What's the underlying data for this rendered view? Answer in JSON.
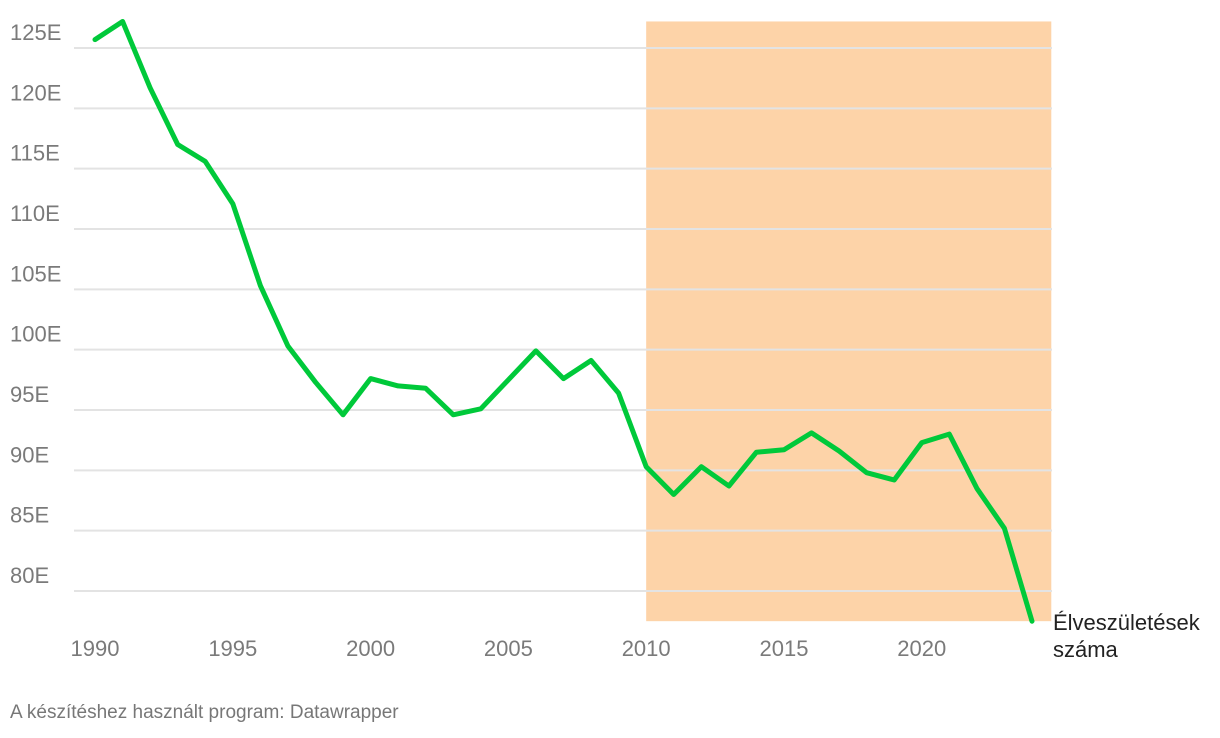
{
  "chart_data": {
    "type": "line",
    "title": "",
    "xlabel": "",
    "ylabel": "",
    "x": [
      1990,
      1991,
      1992,
      1993,
      1994,
      1995,
      1996,
      1997,
      1998,
      1999,
      2000,
      2001,
      2002,
      2003,
      2004,
      2005,
      2006,
      2007,
      2008,
      2009,
      2010,
      2011,
      2012,
      2013,
      2014,
      2015,
      2016,
      2017,
      2018,
      2019,
      2020,
      2021,
      2022,
      2023,
      2024
    ],
    "series": [
      {
        "name": "Élveszületések száma",
        "color": "#00c93a",
        "values": [
          125.7,
          127.2,
          121.7,
          117.0,
          115.6,
          112.1,
          105.3,
          100.3,
          97.3,
          94.6,
          97.6,
          97.0,
          96.8,
          94.6,
          95.1,
          97.5,
          99.9,
          97.6,
          99.1,
          96.4,
          90.3,
          88.0,
          90.3,
          88.7,
          91.5,
          91.7,
          93.1,
          91.6,
          89.8,
          89.2,
          92.3,
          93.0,
          88.5,
          85.2,
          77.5
        ]
      }
    ],
    "series_label_lines": [
      "Élveszületések",
      "száma"
    ],
    "xlim": [
      1990,
      2024
    ],
    "ylim": [
      77.5,
      127.2
    ],
    "x_ticks": [
      1990,
      1995,
      2000,
      2005,
      2010,
      2015,
      2020
    ],
    "y_ticks": [
      80,
      85,
      90,
      95,
      100,
      105,
      110,
      115,
      120,
      125
    ],
    "y_tick_suffix": "E",
    "highlight_range": {
      "x_start": 2010,
      "x_end": 2024.7,
      "color": "#fdd3a8"
    },
    "grid": true,
    "legend": "none"
  },
  "footer": "A készítéshez használt program: Datawrapper"
}
